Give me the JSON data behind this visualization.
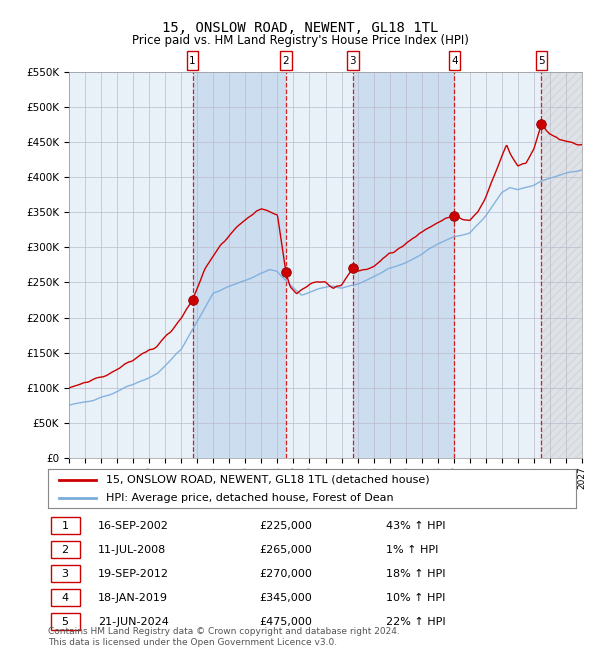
{
  "title": "15, ONSLOW ROAD, NEWENT, GL18 1TL",
  "subtitle": "Price paid vs. HM Land Registry's House Price Index (HPI)",
  "x_start_year": 1995,
  "x_end_year": 2027,
  "y_min": 0,
  "y_max": 550000,
  "y_ticks": [
    0,
    50000,
    100000,
    150000,
    200000,
    250000,
    300000,
    350000,
    400000,
    450000,
    500000,
    550000
  ],
  "y_tick_labels": [
    "£0",
    "£50K",
    "£100K",
    "£150K",
    "£200K",
    "£250K",
    "£300K",
    "£350K",
    "£400K",
    "£450K",
    "£500K",
    "£550K"
  ],
  "transactions": [
    {
      "num": 1,
      "date": "16-SEP-2002",
      "year": 2002.71,
      "price": 225000,
      "pct": "43%",
      "dir": "↑"
    },
    {
      "num": 2,
      "date": "11-JUL-2008",
      "year": 2008.53,
      "price": 265000,
      "pct": "1%",
      "dir": "↑"
    },
    {
      "num": 3,
      "date": "19-SEP-2012",
      "year": 2012.71,
      "price": 270000,
      "pct": "18%",
      "dir": "↑"
    },
    {
      "num": 4,
      "date": "18-JAN-2019",
      "year": 2019.04,
      "price": 345000,
      "pct": "10%",
      "dir": "↑"
    },
    {
      "num": 5,
      "date": "21-JUN-2024",
      "year": 2024.47,
      "price": 475000,
      "pct": "22%",
      "dir": "↑"
    }
  ],
  "hpi_color": "#7aaddc",
  "price_color": "#cc0000",
  "bg_color": "#ffffff",
  "plot_bg_color": "#e8f0f8",
  "grid_color": "#bbbbcc",
  "shade_color": "#ccddf0",
  "footnote": "Contains HM Land Registry data © Crown copyright and database right 2024.\nThis data is licensed under the Open Government Licence v3.0.",
  "legend_line1": "15, ONSLOW ROAD, NEWENT, GL18 1TL (detached house)",
  "legend_line2": "HPI: Average price, detached house, Forest of Dean"
}
